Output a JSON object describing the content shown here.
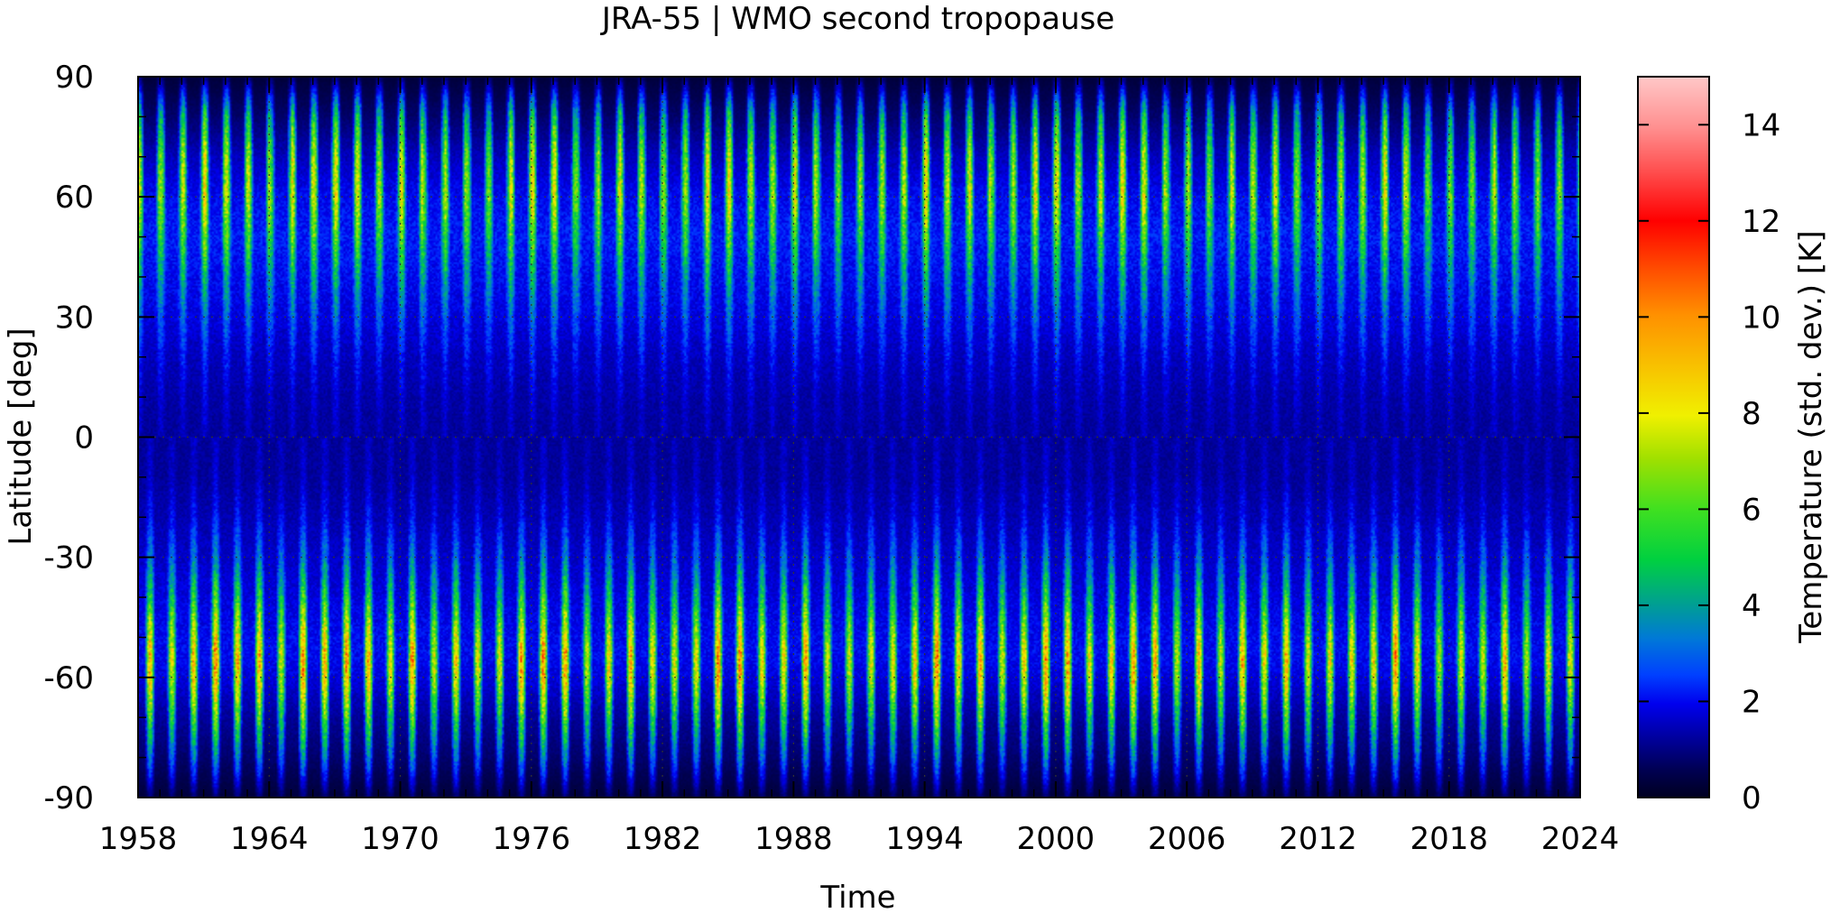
{
  "chart_data": {
    "type": "heatmap",
    "title": "JRA-55 | WMO second tropopause",
    "xlabel": "Time",
    "ylabel": "Latitude [deg]",
    "colorbar_label": "Temperature (std. dev.) [K]",
    "xlim": [
      1958,
      2024
    ],
    "ylim": [
      -90,
      90
    ],
    "clim": [
      0,
      15
    ],
    "x_ticks": [
      "1958",
      "1964",
      "1970",
      "1976",
      "1982",
      "1988",
      "1994",
      "2000",
      "2006",
      "2012",
      "2018",
      "2024"
    ],
    "y_ticks": [
      "90",
      "60",
      "30",
      "0",
      "-30",
      "-60",
      "-90"
    ],
    "colorbar_ticks": [
      "0",
      "2",
      "4",
      "6",
      "8",
      "10",
      "12",
      "14"
    ],
    "grid": true,
    "colormap": [
      [
        0.0,
        "#000020"
      ],
      [
        0.04,
        "#000055"
      ],
      [
        0.09,
        "#0000aa"
      ],
      [
        0.13,
        "#0000ee"
      ],
      [
        0.17,
        "#0040ff"
      ],
      [
        0.22,
        "#0078d8"
      ],
      [
        0.27,
        "#00a090"
      ],
      [
        0.33,
        "#00d040"
      ],
      [
        0.4,
        "#40e020"
      ],
      [
        0.47,
        "#a0e000"
      ],
      [
        0.53,
        "#f0f000"
      ],
      [
        0.6,
        "#f8c000"
      ],
      [
        0.67,
        "#ff9000"
      ],
      [
        0.73,
        "#ff5000"
      ],
      [
        0.8,
        "#ff0000"
      ],
      [
        0.87,
        "#ff5050"
      ],
      [
        0.93,
        "#ff9090"
      ],
      [
        1.0,
        "#ffc8c8"
      ]
    ],
    "pattern": "annual cycle: high variability in winter at mid/high latitudes of each hemisphere (peak ~60 N and ~55-60 S, values up to ~8-12 K), low variability (~1-3 K) in tropics",
    "latitude_profile": {
      "lat": [
        -90,
        -80,
        -70,
        -60,
        -55,
        -50,
        -40,
        -30,
        -20,
        -10,
        0,
        10,
        20,
        30,
        40,
        50,
        60,
        70,
        80,
        90
      ],
      "winter_peak_K": [
        0.8,
        3.5,
        6.0,
        8.5,
        9.0,
        8.0,
        5.5,
        3.5,
        2.2,
        1.7,
        1.6,
        1.8,
        2.3,
        3.2,
        4.5,
        6.0,
        7.5,
        7.0,
        5.0,
        0.8
      ],
      "summer_min_K": [
        0.3,
        0.8,
        1.2,
        1.8,
        2.0,
        2.0,
        1.8,
        1.6,
        1.4,
        1.2,
        1.2,
        1.3,
        1.5,
        1.8,
        2.0,
        2.2,
        2.0,
        1.5,
        0.8,
        0.3
      ]
    }
  }
}
